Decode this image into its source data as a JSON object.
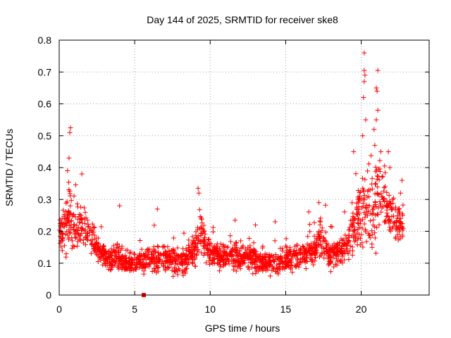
{
  "chart_data": {
    "type": "scatter",
    "title": "Day 144 of 2025, SRMTID for receiver ske8",
    "xlabel": "GPS time / hours",
    "ylabel": "SRMTID / TECUs",
    "xlim": [
      0,
      24.5
    ],
    "ylim": [
      0,
      0.8
    ],
    "xticks": [
      0,
      5,
      10,
      15,
      20
    ],
    "yticks": [
      0,
      0.1,
      0.2,
      0.3,
      0.4,
      0.5,
      0.6,
      0.7,
      0.8
    ],
    "xtick_labels": [
      "0",
      "5",
      "10",
      "15",
      "20"
    ],
    "ytick_labels": [
      "0",
      "0.1",
      "0.2",
      "0.3",
      "0.4",
      "0.5",
      "0.6",
      "0.7",
      "0.8"
    ],
    "grid": true,
    "marker": "+",
    "color": "#ff0000",
    "series": [
      {
        "name": "SRMTID",
        "profile_x": [
          0,
          0.3,
          0.7,
          1.0,
          1.5,
          2.0,
          2.5,
          3.0,
          3.5,
          4.0,
          4.5,
          5.0,
          6.0,
          7.0,
          8.0,
          9.0,
          9.3,
          10.0,
          11.0,
          12.0,
          13.0,
          14.0,
          15.0,
          16.0,
          17.0,
          17.3,
          18.0,
          19.0,
          19.5,
          20.0,
          20.5,
          21.0,
          21.5,
          22.0,
          22.6
        ],
        "profile_median": [
          0.2,
          0.22,
          0.25,
          0.2,
          0.22,
          0.19,
          0.15,
          0.12,
          0.11,
          0.12,
          0.1,
          0.1,
          0.11,
          0.12,
          0.1,
          0.14,
          0.2,
          0.13,
          0.12,
          0.12,
          0.11,
          0.1,
          0.11,
          0.12,
          0.14,
          0.18,
          0.12,
          0.15,
          0.2,
          0.27,
          0.25,
          0.3,
          0.3,
          0.25,
          0.22
        ],
        "profile_spread": [
          0.08,
          0.1,
          0.12,
          0.08,
          0.08,
          0.06,
          0.05,
          0.05,
          0.05,
          0.06,
          0.04,
          0.04,
          0.05,
          0.06,
          0.05,
          0.06,
          0.09,
          0.05,
          0.05,
          0.05,
          0.05,
          0.04,
          0.05,
          0.05,
          0.06,
          0.07,
          0.05,
          0.06,
          0.1,
          0.14,
          0.15,
          0.17,
          0.13,
          0.09,
          0.07
        ],
        "peaks": [
          {
            "x": 0.75,
            "y": 0.525
          },
          {
            "x": 0.7,
            "y": 0.51
          },
          {
            "x": 0.65,
            "y": 0.43
          },
          {
            "x": 0.55,
            "y": 0.39
          },
          {
            "x": 1.5,
            "y": 0.38
          },
          {
            "x": 4.0,
            "y": 0.28
          },
          {
            "x": 6.5,
            "y": 0.27
          },
          {
            "x": 9.2,
            "y": 0.335
          },
          {
            "x": 9.25,
            "y": 0.32
          },
          {
            "x": 13.0,
            "y": 0.22
          },
          {
            "x": 14.3,
            "y": 0.23
          },
          {
            "x": 17.2,
            "y": 0.29
          },
          {
            "x": 19.5,
            "y": 0.45
          },
          {
            "x": 20.2,
            "y": 0.76
          },
          {
            "x": 20.2,
            "y": 0.705
          },
          {
            "x": 20.25,
            "y": 0.69
          },
          {
            "x": 20.2,
            "y": 0.67
          },
          {
            "x": 20.15,
            "y": 0.62
          },
          {
            "x": 20.3,
            "y": 0.55
          },
          {
            "x": 20.1,
            "y": 0.5
          },
          {
            "x": 21.1,
            "y": 0.705
          },
          {
            "x": 21.0,
            "y": 0.65
          },
          {
            "x": 21.05,
            "y": 0.64
          },
          {
            "x": 21.1,
            "y": 0.58
          },
          {
            "x": 21.0,
            "y": 0.55
          },
          {
            "x": 20.85,
            "y": 0.52
          },
          {
            "x": 20.9,
            "y": 0.47
          },
          {
            "x": 21.3,
            "y": 0.45
          },
          {
            "x": 21.8,
            "y": 0.45
          },
          {
            "x": 21.9,
            "y": 0.4
          },
          {
            "x": 22.7,
            "y": 0.36
          },
          {
            "x": 22.6,
            "y": 0.32
          }
        ],
        "outliers": [
          {
            "x": 5.6,
            "y": 0.0
          }
        ],
        "x_range": [
          0.0,
          22.8
        ],
        "approx_count": 1900
      }
    ]
  }
}
